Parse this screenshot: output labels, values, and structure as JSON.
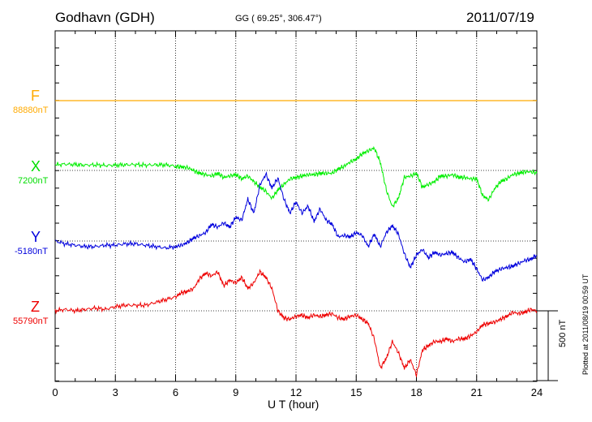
{
  "header": {
    "station": "Godhavn (GDH)",
    "coords": "GG ( 69.25°, 306.47°)",
    "date": "2011/07/19"
  },
  "side_note": "Plotted at 2011/08/19 00:59 UT",
  "colors": {
    "F": "#ffaa00",
    "X": "#00ee00",
    "Y": "#0000dd",
    "Z": "#ee0000",
    "axis": "#000000"
  },
  "chart_data": {
    "type": "line",
    "xlabel": "U T (hour)",
    "x_range": [
      0,
      24
    ],
    "x_ticks": [
      0,
      3,
      6,
      9,
      12,
      15,
      18,
      21,
      24
    ],
    "scale_bar_label": "500 nT",
    "scale_bar_nT": 500,
    "series": [
      {
        "name": "F",
        "baseline_label": "88880nT",
        "baseline_nT": 88880,
        "x": [
          0,
          24
        ],
        "y": [
          0,
          0
        ]
      },
      {
        "name": "X",
        "baseline_label": "7200nT",
        "baseline_nT": 7200,
        "x": [
          0,
          0.5,
          1,
          1.5,
          2,
          2.5,
          3,
          3.5,
          4,
          4.5,
          5,
          5.5,
          6,
          6.3,
          6.6,
          6.9,
          7.2,
          7.5,
          7.8,
          8.1,
          8.4,
          8.7,
          9.0,
          9.3,
          9.6,
          9.9,
          10.2,
          10.5,
          10.8,
          11.1,
          11.4,
          11.7,
          12.0,
          12.3,
          12.6,
          12.9,
          13.2,
          13.5,
          13.8,
          14.1,
          14.4,
          14.7,
          15.0,
          15.3,
          15.6,
          15.9,
          16.2,
          16.5,
          16.8,
          17.1,
          17.4,
          17.7,
          18.0,
          18.3,
          18.6,
          18.9,
          19.2,
          19.5,
          19.8,
          20.1,
          20.4,
          20.7,
          21.0,
          21.3,
          21.6,
          21.9,
          22.2,
          22.5,
          22.8,
          23.1,
          23.4,
          23.7,
          24
        ],
        "y": [
          40,
          45,
          42,
          38,
          40,
          35,
          38,
          40,
          42,
          38,
          40,
          40,
          30,
          25,
          20,
          0,
          -20,
          -30,
          -40,
          -20,
          -50,
          -40,
          -30,
          -60,
          -40,
          -80,
          -120,
          -150,
          -200,
          -140,
          -100,
          -60,
          -50,
          -40,
          -30,
          -30,
          -20,
          -20,
          -20,
          10,
          30,
          60,
          80,
          120,
          140,
          160,
          60,
          -140,
          -260,
          -200,
          -50,
          -40,
          -20,
          -120,
          -100,
          -80,
          -40,
          -40,
          -30,
          -50,
          -50,
          -60,
          -60,
          -180,
          -210,
          -130,
          -80,
          -60,
          -30,
          -20,
          -10,
          -10,
          -20
        ]
      },
      {
        "name": "Y",
        "baseline_label": "-5180nT",
        "baseline_nT": -5180,
        "x": [
          0,
          0.5,
          1,
          1.5,
          2,
          2.5,
          3,
          3.5,
          4,
          4.5,
          5,
          5.5,
          6,
          6.3,
          6.6,
          6.9,
          7.2,
          7.5,
          7.8,
          8.1,
          8.4,
          8.7,
          9.0,
          9.3,
          9.6,
          9.9,
          10.2,
          10.5,
          10.8,
          11.1,
          11.4,
          11.7,
          12.0,
          12.3,
          12.6,
          12.9,
          13.2,
          13.5,
          13.8,
          14.1,
          14.4,
          14.7,
          15.0,
          15.3,
          15.6,
          15.9,
          16.2,
          16.5,
          16.8,
          17.1,
          17.4,
          17.7,
          18.0,
          18.3,
          18.6,
          18.9,
          19.2,
          19.5,
          19.8,
          20.1,
          20.4,
          20.7,
          21.0,
          21.3,
          21.6,
          21.9,
          22.2,
          22.5,
          22.8,
          23.1,
          23.4,
          23.7,
          24
        ],
        "y": [
          0,
          -20,
          -30,
          -40,
          -40,
          -30,
          -30,
          -20,
          -20,
          -30,
          -40,
          -50,
          -40,
          -30,
          -10,
          20,
          40,
          60,
          120,
          100,
          130,
          100,
          170,
          150,
          300,
          200,
          400,
          480,
          380,
          450,
          300,
          200,
          280,
          200,
          250,
          140,
          230,
          150,
          120,
          30,
          40,
          30,
          60,
          40,
          -40,
          50,
          -40,
          60,
          110,
          50,
          -90,
          -190,
          -100,
          -60,
          -120,
          -80,
          -100,
          -90,
          -80,
          -120,
          -150,
          -130,
          -200,
          -280,
          -260,
          -220,
          -200,
          -190,
          -180,
          -160,
          -140,
          -130,
          -100
        ]
      },
      {
        "name": "Z",
        "baseline_label": "55790nT",
        "baseline_nT": 55790,
        "x": [
          0,
          0.5,
          1,
          1.5,
          2,
          2.5,
          3,
          3.5,
          4,
          4.5,
          5,
          5.5,
          6,
          6.3,
          6.6,
          6.9,
          7.2,
          7.5,
          7.8,
          8.1,
          8.4,
          8.7,
          9.0,
          9.3,
          9.6,
          9.9,
          10.2,
          10.5,
          10.8,
          11.1,
          11.4,
          11.7,
          12.0,
          12.3,
          12.6,
          12.9,
          13.2,
          13.5,
          13.8,
          14.1,
          14.4,
          14.7,
          15.0,
          15.3,
          15.6,
          15.9,
          16.2,
          16.5,
          16.8,
          17.1,
          17.4,
          17.7,
          18.0,
          18.3,
          18.6,
          18.9,
          19.2,
          19.5,
          19.8,
          20.1,
          20.4,
          20.7,
          21.0,
          21.3,
          21.6,
          21.9,
          22.2,
          22.5,
          22.8,
          23.1,
          23.4,
          23.7,
          24
        ],
        "y": [
          0,
          10,
          0,
          10,
          20,
          10,
          30,
          40,
          40,
          40,
          60,
          80,
          100,
          130,
          140,
          160,
          230,
          270,
          250,
          280,
          180,
          220,
          200,
          240,
          160,
          200,
          280,
          240,
          160,
          0,
          -50,
          -60,
          -40,
          -30,
          -50,
          -30,
          -40,
          -30,
          -20,
          -50,
          -60,
          -40,
          -30,
          -60,
          -90,
          -200,
          -410,
          -340,
          -220,
          -300,
          -410,
          -350,
          -460,
          -280,
          -250,
          -220,
          -220,
          -200,
          -220,
          -200,
          -200,
          -180,
          -150,
          -100,
          -90,
          -80,
          -60,
          -40,
          -10,
          -20,
          -10,
          10,
          0
        ]
      }
    ]
  }
}
